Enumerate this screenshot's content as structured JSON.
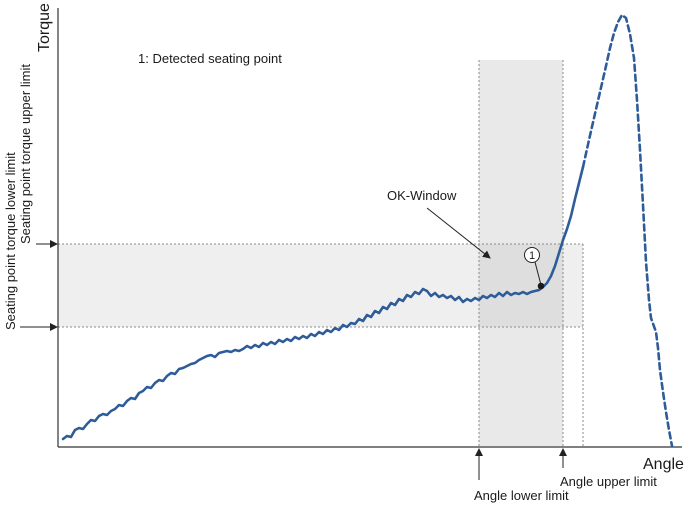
{
  "axes": {
    "y_title": "Torque",
    "x_title": "Angle"
  },
  "legend_note": "1: Detected seating point",
  "ok_window_label": "OK-Window",
  "seating_marker_number": "1",
  "y_limits": {
    "upper": "Seating point torque upper limit",
    "lower": "Seating point torque lower limit"
  },
  "x_limits": {
    "lower": "Angle lower limit",
    "upper": "Angle upper limit"
  },
  "colors": {
    "curve": "#2e5c99",
    "window_fill": "#ececec",
    "guide_line": "#888888",
    "axis": "#333333"
  }
}
